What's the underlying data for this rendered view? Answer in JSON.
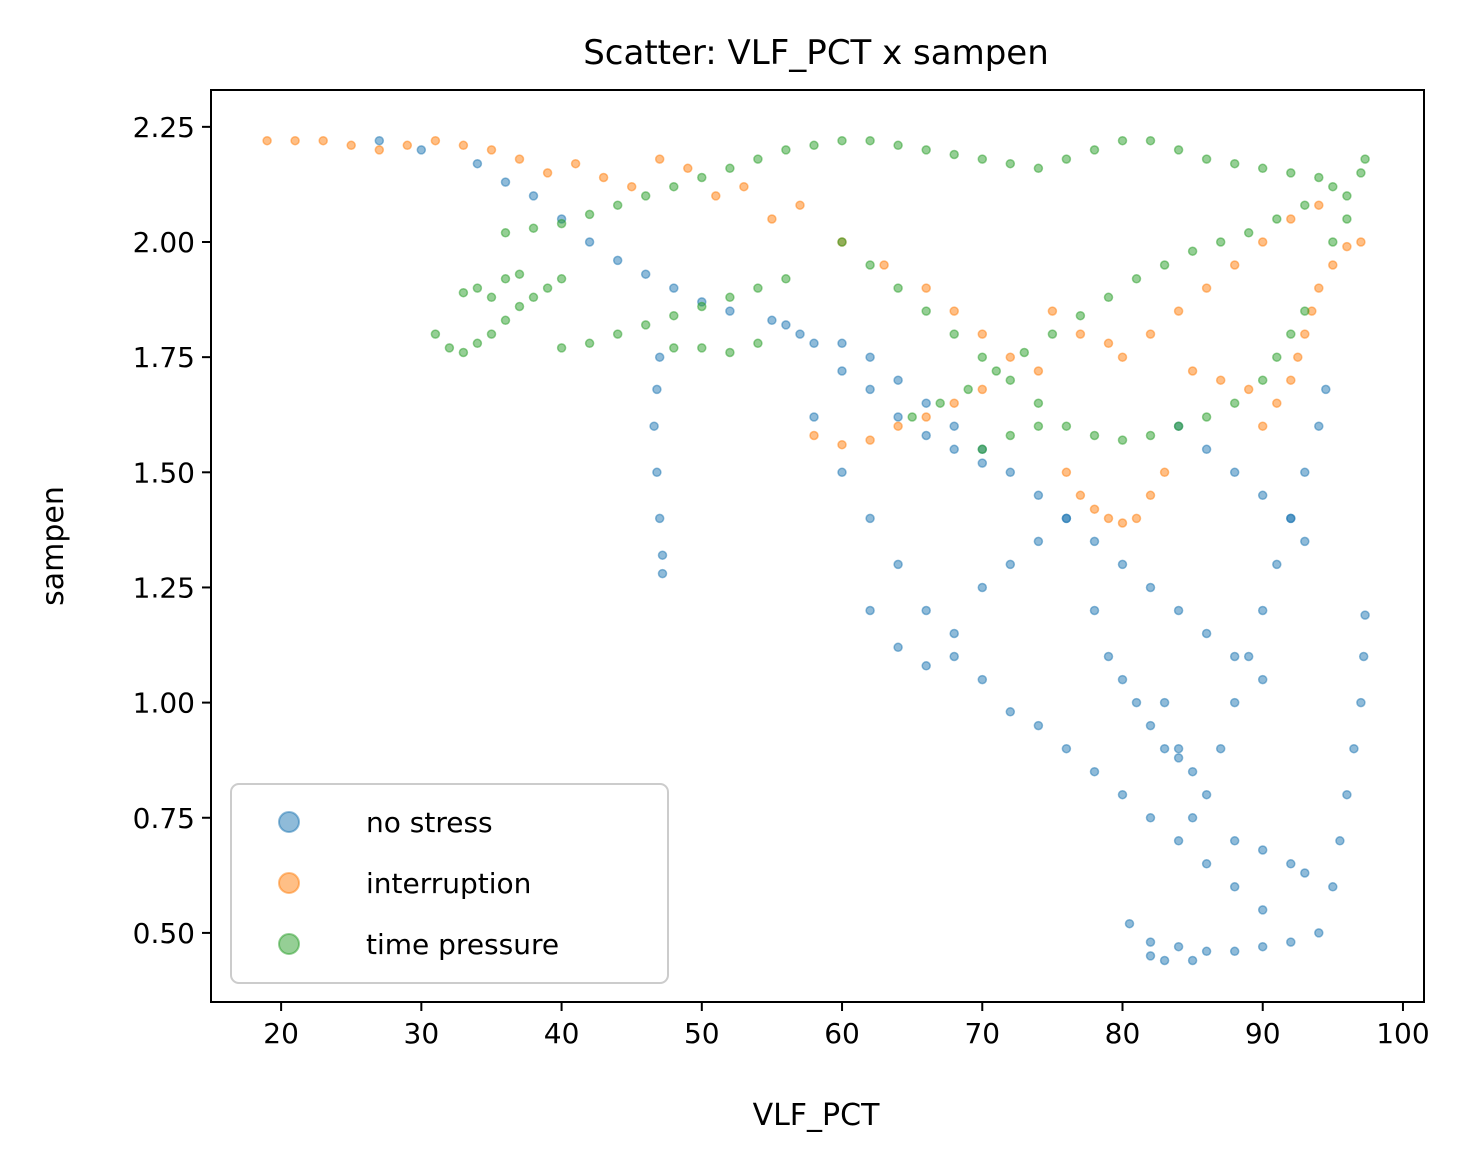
{
  "chart_data": {
    "type": "scatter",
    "title": "Scatter: VLF_PCT x sampen",
    "xlabel": "VLF_PCT",
    "ylabel": "sampen",
    "xlim": [
      15,
      101.5
    ],
    "ylim": [
      0.35,
      2.33
    ],
    "xticks": [
      20,
      30,
      40,
      50,
      60,
      70,
      80,
      90,
      100
    ],
    "yticks": [
      0.5,
      0.75,
      1.0,
      1.25,
      1.5,
      1.75,
      2.0,
      2.25
    ],
    "xtick_labels": [
      "20",
      "30",
      "40",
      "50",
      "60",
      "70",
      "80",
      "90",
      "100"
    ],
    "ytick_labels": [
      "0.50",
      "0.75",
      "1.00",
      "1.25",
      "1.50",
      "1.75",
      "2.00",
      "2.25"
    ],
    "grid": false,
    "legend_position": "lower-left",
    "series": [
      {
        "name": "no stress",
        "color": "#1f77b4",
        "alpha": 0.5,
        "points": [
          [
            27,
            2.22
          ],
          [
            30,
            2.2
          ],
          [
            34,
            2.17
          ],
          [
            36,
            2.13
          ],
          [
            38,
            2.1
          ],
          [
            40,
            2.05
          ],
          [
            42,
            2.0
          ],
          [
            44,
            1.96
          ],
          [
            46,
            1.93
          ],
          [
            48,
            1.9
          ],
          [
            50,
            1.87
          ],
          [
            52,
            1.85
          ],
          [
            55,
            1.83
          ],
          [
            57,
            1.8
          ],
          [
            60,
            1.78
          ],
          [
            62,
            1.75
          ],
          [
            64,
            1.7
          ],
          [
            66,
            1.65
          ],
          [
            68,
            1.6
          ],
          [
            70,
            1.55
          ],
          [
            72,
            1.5
          ],
          [
            74,
            1.45
          ],
          [
            76,
            1.4
          ],
          [
            78,
            1.35
          ],
          [
            80,
            1.3
          ],
          [
            82,
            1.25
          ],
          [
            84,
            1.2
          ],
          [
            86,
            1.15
          ],
          [
            88,
            1.1
          ],
          [
            90,
            1.05
          ],
          [
            47,
            1.75
          ],
          [
            46.8,
            1.68
          ],
          [
            46.6,
            1.6
          ],
          [
            46.8,
            1.5
          ],
          [
            47,
            1.4
          ],
          [
            47.2,
            1.32
          ],
          [
            47.2,
            1.28
          ],
          [
            58,
            1.62
          ],
          [
            60,
            1.5
          ],
          [
            62,
            1.4
          ],
          [
            64,
            1.3
          ],
          [
            66,
            1.2
          ],
          [
            68,
            1.1
          ],
          [
            70,
            1.05
          ],
          [
            72,
            0.98
          ],
          [
            74,
            0.95
          ],
          [
            76,
            0.9
          ],
          [
            78,
            0.85
          ],
          [
            80,
            0.8
          ],
          [
            82,
            0.75
          ],
          [
            84,
            0.7
          ],
          [
            86,
            0.65
          ],
          [
            88,
            0.6
          ],
          [
            90,
            0.55
          ],
          [
            80.5,
            0.52
          ],
          [
            82,
            0.48
          ],
          [
            84,
            0.47
          ],
          [
            86,
            0.46
          ],
          [
            88,
            0.46
          ],
          [
            90,
            0.47
          ],
          [
            92,
            0.48
          ],
          [
            94,
            0.5
          ],
          [
            95,
            0.6
          ],
          [
            95.5,
            0.7
          ],
          [
            96,
            0.8
          ],
          [
            96.5,
            0.9
          ],
          [
            97,
            1.0
          ],
          [
            97.2,
            1.1
          ],
          [
            97.3,
            1.19
          ],
          [
            86,
            0.8
          ],
          [
            87,
            0.9
          ],
          [
            88,
            1.0
          ],
          [
            89,
            1.1
          ],
          [
            90,
            1.2
          ],
          [
            91,
            1.3
          ],
          [
            92,
            1.4
          ],
          [
            93,
            1.5
          ],
          [
            94,
            1.6
          ],
          [
            94.5,
            1.68
          ],
          [
            78,
            1.2
          ],
          [
            79,
            1.1
          ],
          [
            80,
            1.05
          ],
          [
            81,
            1.0
          ],
          [
            82,
            0.95
          ],
          [
            83,
            0.9
          ],
          [
            84,
            0.88
          ],
          [
            85,
            0.85
          ],
          [
            62,
            1.2
          ],
          [
            64,
            1.12
          ],
          [
            66,
            1.08
          ],
          [
            68,
            1.15
          ],
          [
            70,
            1.25
          ],
          [
            72,
            1.3
          ],
          [
            74,
            1.35
          ],
          [
            76,
            1.4
          ],
          [
            56,
            1.82
          ],
          [
            58,
            1.78
          ],
          [
            60,
            1.72
          ],
          [
            62,
            1.68
          ],
          [
            64,
            1.62
          ],
          [
            66,
            1.58
          ],
          [
            68,
            1.55
          ],
          [
            70,
            1.52
          ],
          [
            84,
            1.6
          ],
          [
            86,
            1.55
          ],
          [
            88,
            1.5
          ],
          [
            90,
            1.45
          ],
          [
            92,
            1.4
          ],
          [
            93,
            1.35
          ],
          [
            83,
            1.0
          ],
          [
            84,
            0.9
          ],
          [
            85,
            0.75
          ],
          [
            88,
            0.7
          ],
          [
            90,
            0.68
          ],
          [
            92,
            0.65
          ],
          [
            93,
            0.63
          ],
          [
            82,
            0.45
          ],
          [
            83,
            0.44
          ],
          [
            85,
            0.44
          ]
        ]
      },
      {
        "name": "interruption",
        "color": "#ff7f0e",
        "alpha": 0.5,
        "points": [
          [
            19,
            2.22
          ],
          [
            21,
            2.22
          ],
          [
            23,
            2.22
          ],
          [
            25,
            2.21
          ],
          [
            27,
            2.2
          ],
          [
            29,
            2.21
          ],
          [
            31,
            2.22
          ],
          [
            33,
            2.21
          ],
          [
            35,
            2.2
          ],
          [
            37,
            2.18
          ],
          [
            39,
            2.15
          ],
          [
            41,
            2.17
          ],
          [
            43,
            2.14
          ],
          [
            45,
            2.12
          ],
          [
            47,
            2.18
          ],
          [
            49,
            2.16
          ],
          [
            51,
            2.1
          ],
          [
            53,
            2.12
          ],
          [
            55,
            2.05
          ],
          [
            57,
            2.08
          ],
          [
            60,
            2.0
          ],
          [
            63,
            1.95
          ],
          [
            66,
            1.9
          ],
          [
            68,
            1.85
          ],
          [
            70,
            1.8
          ],
          [
            72,
            1.75
          ],
          [
            74,
            1.72
          ],
          [
            58,
            1.58
          ],
          [
            60,
            1.56
          ],
          [
            62,
            1.57
          ],
          [
            64,
            1.6
          ],
          [
            66,
            1.62
          ],
          [
            68,
            1.65
          ],
          [
            70,
            1.68
          ],
          [
            76,
            1.5
          ],
          [
            77,
            1.45
          ],
          [
            78,
            1.42
          ],
          [
            79,
            1.4
          ],
          [
            80,
            1.39
          ],
          [
            81,
            1.4
          ],
          [
            82,
            1.45
          ],
          [
            83,
            1.5
          ],
          [
            91,
            1.65
          ],
          [
            92,
            1.7
          ],
          [
            92.5,
            1.75
          ],
          [
            93,
            1.8
          ],
          [
            93.5,
            1.85
          ],
          [
            94,
            1.9
          ],
          [
            95,
            1.95
          ],
          [
            96,
            1.99
          ],
          [
            97,
            2.0
          ],
          [
            80,
            1.75
          ],
          [
            82,
            1.8
          ],
          [
            84,
            1.85
          ],
          [
            86,
            1.9
          ],
          [
            88,
            1.95
          ],
          [
            90,
            2.0
          ],
          [
            92,
            2.05
          ],
          [
            94,
            2.08
          ],
          [
            75,
            1.85
          ],
          [
            77,
            1.8
          ],
          [
            79,
            1.78
          ],
          [
            85,
            1.72
          ],
          [
            87,
            1.7
          ],
          [
            89,
            1.68
          ],
          [
            90,
            1.6
          ]
        ]
      },
      {
        "name": "time pressure",
        "color": "#2ca02c",
        "alpha": 0.5,
        "points": [
          [
            31,
            1.8
          ],
          [
            32,
            1.77
          ],
          [
            33,
            1.76
          ],
          [
            34,
            1.78
          ],
          [
            35,
            1.8
          ],
          [
            36,
            1.83
          ],
          [
            37,
            1.86
          ],
          [
            38,
            1.88
          ],
          [
            39,
            1.9
          ],
          [
            40,
            1.92
          ],
          [
            33,
            1.89
          ],
          [
            34,
            1.9
          ],
          [
            35,
            1.88
          ],
          [
            36,
            1.92
          ],
          [
            37,
            1.93
          ],
          [
            40,
            1.77
          ],
          [
            42,
            1.78
          ],
          [
            44,
            1.8
          ],
          [
            46,
            1.82
          ],
          [
            48,
            1.84
          ],
          [
            50,
            1.86
          ],
          [
            52,
            1.88
          ],
          [
            54,
            1.9
          ],
          [
            56,
            1.92
          ],
          [
            48,
            1.77
          ],
          [
            50,
            1.77
          ],
          [
            52,
            1.76
          ],
          [
            54,
            1.78
          ],
          [
            36,
            2.02
          ],
          [
            38,
            2.03
          ],
          [
            40,
            2.04
          ],
          [
            42,
            2.06
          ],
          [
            44,
            2.08
          ],
          [
            46,
            2.1
          ],
          [
            48,
            2.12
          ],
          [
            50,
            2.14
          ],
          [
            52,
            2.16
          ],
          [
            54,
            2.18
          ],
          [
            56,
            2.2
          ],
          [
            58,
            2.21
          ],
          [
            60,
            2.22
          ],
          [
            62,
            2.22
          ],
          [
            64,
            2.21
          ],
          [
            66,
            2.2
          ],
          [
            68,
            2.19
          ],
          [
            70,
            2.18
          ],
          [
            72,
            2.17
          ],
          [
            74,
            2.16
          ],
          [
            76,
            2.18
          ],
          [
            78,
            2.2
          ],
          [
            80,
            2.22
          ],
          [
            82,
            2.22
          ],
          [
            84,
            2.2
          ],
          [
            86,
            2.18
          ],
          [
            88,
            2.17
          ],
          [
            90,
            2.16
          ],
          [
            92,
            2.15
          ],
          [
            94,
            2.14
          ],
          [
            95,
            2.12
          ],
          [
            96,
            2.1
          ],
          [
            97,
            2.15
          ],
          [
            97.3,
            2.18
          ],
          [
            96,
            2.05
          ],
          [
            95,
            2.0
          ],
          [
            60,
            2.0
          ],
          [
            62,
            1.95
          ],
          [
            64,
            1.9
          ],
          [
            66,
            1.85
          ],
          [
            68,
            1.8
          ],
          [
            70,
            1.75
          ],
          [
            72,
            1.7
          ],
          [
            74,
            1.65
          ],
          [
            76,
            1.6
          ],
          [
            78,
            1.58
          ],
          [
            80,
            1.57
          ],
          [
            82,
            1.58
          ],
          [
            84,
            1.6
          ],
          [
            86,
            1.62
          ],
          [
            88,
            1.65
          ],
          [
            90,
            1.7
          ],
          [
            91,
            1.75
          ],
          [
            92,
            1.8
          ],
          [
            93,
            1.85
          ],
          [
            65,
            1.62
          ],
          [
            67,
            1.65
          ],
          [
            69,
            1.68
          ],
          [
            71,
            1.72
          ],
          [
            73,
            1.76
          ],
          [
            75,
            1.8
          ],
          [
            77,
            1.84
          ],
          [
            79,
            1.88
          ],
          [
            81,
            1.92
          ],
          [
            83,
            1.95
          ],
          [
            85,
            1.98
          ],
          [
            87,
            2.0
          ],
          [
            89,
            2.02
          ],
          [
            91,
            2.05
          ],
          [
            93,
            2.08
          ],
          [
            70,
            1.55
          ],
          [
            72,
            1.58
          ],
          [
            74,
            1.6
          ]
        ]
      }
    ]
  }
}
